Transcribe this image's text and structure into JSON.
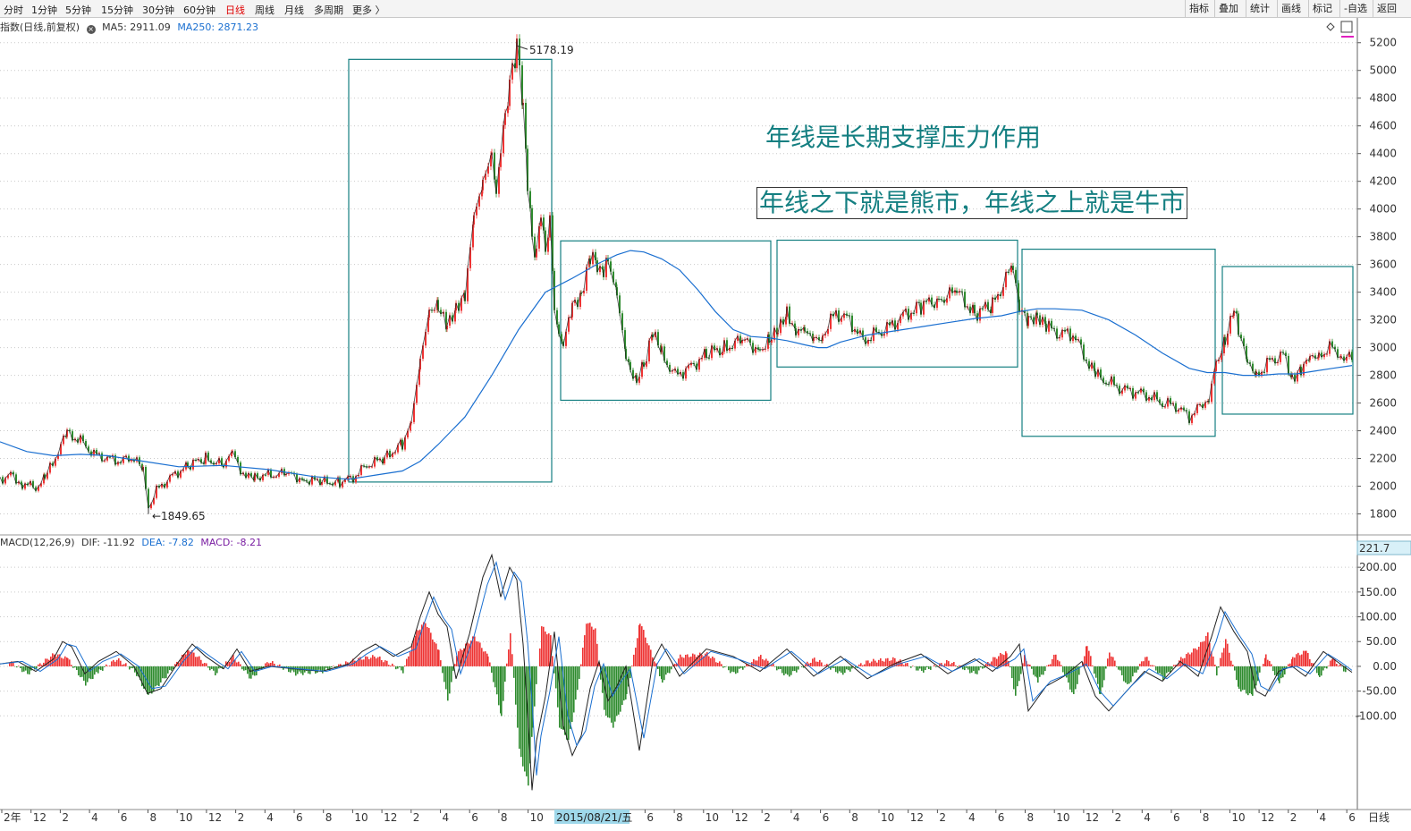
{
  "toolbar": {
    "tabs": [
      "分时",
      "1分钟",
      "5分钟",
      "15分钟",
      "30分钟",
      "60分钟",
      "日线",
      "周线",
      "月线",
      "多周期",
      "更多 〉"
    ],
    "active_tab": "日线",
    "right_buttons": [
      "指标",
      "叠加",
      "统计",
      "画线",
      "标记",
      "-自选",
      "返回"
    ]
  },
  "header": {
    "title": "指数(日线,前复权)",
    "ma5": "MA5: 2911.09",
    "ma250": "MA250: 2871.23",
    "colors": {
      "ma5": "#333333",
      "ma250": "#1a6fd0"
    }
  },
  "annotations": {
    "line1": "年线是长期支撑压力作用",
    "line2": "年线之下就是熊市，年线之上就是牛市",
    "high_label": "5178.19",
    "low_label": "1849.65",
    "color": "#147f81"
  },
  "macd": {
    "title": "MACD(12,26,9)",
    "dif": "DIF: -11.92",
    "dea": "DEA: -7.82",
    "macd": "MACD: -8.21",
    "badge": "221.7",
    "colors": {
      "dif": "#333333",
      "dea": "#1a6fd0",
      "macd": "#7a1fa2",
      "up": "#ee3333",
      "down": "#2e8b2e"
    }
  },
  "xaxis": {
    "labels": [
      "2年",
      "12",
      "2",
      "4",
      "6",
      "8",
      "10",
      "12",
      "2",
      "4",
      "6",
      "8",
      "10",
      "12",
      "2",
      "4",
      "6",
      "8",
      "10",
      "12",
      "2",
      "4",
      "6",
      "8",
      "10",
      "12",
      "2",
      "4",
      "6",
      "8",
      "10",
      "12",
      "2",
      "4",
      "6",
      "8",
      "10",
      "12",
      "2",
      "4",
      "6",
      "8",
      "10",
      "12",
      "2",
      "4",
      "6",
      "8",
      "10"
    ],
    "cursor_date": "2015/08/21/五",
    "period_label": "日线"
  },
  "chart_data": [
    {
      "type": "line",
      "title": "指数(日线,前复权)",
      "ylim": [
        1700,
        5250
      ],
      "yticks": [
        1800,
        2000,
        2200,
        2400,
        2600,
        2800,
        3000,
        3200,
        3400,
        3600,
        3800,
        4000,
        4200,
        4400,
        4600,
        4800,
        5000,
        5200
      ],
      "series": [
        {
          "name": "K线",
          "x": [
            0,
            12,
            25,
            40,
            50,
            65,
            75,
            90,
            105,
            120,
            135,
            150,
            160,
            166,
            175,
            190,
            210,
            230,
            250,
            260,
            275,
            285,
            300,
            320,
            340,
            360,
            380,
            395,
            410,
            430,
            450,
            460,
            470,
            480,
            490,
            500,
            510,
            520,
            530,
            540,
            550,
            555,
            560,
            565,
            570,
            578,
            585,
            590,
            595,
            600,
            605,
            610,
            615,
            620,
            625,
            630,
            640,
            650,
            660,
            668,
            675,
            680,
            690,
            700,
            705,
            712,
            720,
            730,
            740,
            755,
            770,
            790,
            810,
            830,
            850,
            860,
            870,
            880,
            890,
            900,
            910,
            920,
            935,
            950,
            965,
            980,
            995,
            1010,
            1030,
            1050,
            1070,
            1090,
            1110,
            1125,
            1133,
            1140,
            1150,
            1160,
            1170,
            1185,
            1200,
            1212,
            1225,
            1240,
            1255,
            1270,
            1285,
            1300,
            1315,
            1330,
            1342,
            1352,
            1360,
            1370,
            1380,
            1385,
            1395,
            1405,
            1420,
            1435,
            1445,
            1455,
            1465,
            1475,
            1490,
            1500,
            1512
          ],
          "values": [
            2050,
            2080,
            2020,
            1990,
            2050,
            2250,
            2380,
            2330,
            2230,
            2200,
            2180,
            2210,
            2100,
            1850,
            1970,
            2060,
            2150,
            2200,
            2150,
            2230,
            2060,
            2070,
            2080,
            2090,
            2050,
            2030,
            2030,
            2060,
            2150,
            2200,
            2310,
            2440,
            2900,
            3300,
            3280,
            3140,
            3300,
            3400,
            3900,
            4200,
            4450,
            4100,
            4400,
            4700,
            4900,
            5178,
            4700,
            4200,
            3800,
            3650,
            4000,
            3700,
            3900,
            3300,
            3100,
            3000,
            3300,
            3400,
            3650,
            3600,
            3550,
            3650,
            3400,
            2900,
            2850,
            2750,
            2880,
            3100,
            2950,
            2800,
            2850,
            2950,
            3000,
            3050,
            2990,
            3060,
            3100,
            3250,
            3150,
            3100,
            3050,
            3100,
            3250,
            3200,
            3050,
            3100,
            3150,
            3230,
            3300,
            3350,
            3400,
            3250,
            3300,
            3500,
            3580,
            3250,
            3200,
            3250,
            3150,
            3100,
            3100,
            2950,
            2800,
            2750,
            2700,
            2680,
            2650,
            2600,
            2580,
            2500,
            2570,
            2650,
            2900,
            3050,
            3250,
            3150,
            2870,
            2800,
            2900,
            2950,
            2790,
            2850,
            2900,
            2950,
            3000,
            2950,
            2911
          ]
        },
        {
          "name": "MA250",
          "x": [
            0,
            30,
            60,
            90,
            120,
            160,
            200,
            250,
            300,
            350,
            390,
            420,
            450,
            470,
            490,
            520,
            550,
            580,
            610,
            640,
            670,
            690,
            705,
            720,
            740,
            760,
            780,
            800,
            820,
            840,
            860,
            880,
            900,
            915,
            925,
            940,
            970,
            1000,
            1030,
            1060,
            1090,
            1120,
            1140,
            1160,
            1180,
            1210,
            1240,
            1270,
            1300,
            1330,
            1350,
            1370,
            1390,
            1410,
            1430,
            1450,
            1470,
            1490,
            1512
          ],
          "values": [
            2320,
            2250,
            2220,
            2230,
            2220,
            2180,
            2140,
            2150,
            2120,
            2070,
            2050,
            2080,
            2110,
            2180,
            2300,
            2500,
            2800,
            3130,
            3400,
            3500,
            3610,
            3670,
            3700,
            3690,
            3640,
            3560,
            3420,
            3260,
            3130,
            3080,
            3070,
            3050,
            3020,
            3000,
            3000,
            3040,
            3090,
            3120,
            3150,
            3180,
            3210,
            3230,
            3260,
            3280,
            3280,
            3270,
            3200,
            3090,
            2960,
            2850,
            2820,
            2820,
            2800,
            2800,
            2810,
            2810,
            2830,
            2850,
            2871
          ]
        }
      ],
      "highlight_boxes": [
        {
          "from_x": 390,
          "to_x": 617,
          "low": 2030,
          "high": 5080
        },
        {
          "from_x": 627,
          "to_x": 862,
          "low": 2620,
          "high": 3770
        },
        {
          "from_x": 869,
          "to_x": 1138,
          "low": 2860,
          "high": 3775
        },
        {
          "from_x": 1143,
          "to_x": 1359,
          "low": 2360,
          "high": 3710
        },
        {
          "from_x": 1367,
          "to_x": 1513,
          "low": 2520,
          "high": 3585
        }
      ]
    },
    {
      "type": "line",
      "title": "MACD(12,26,9)",
      "ylim": [
        -280,
        240
      ],
      "yticks": [
        -100,
        -50,
        0,
        50,
        100,
        150,
        200
      ],
      "series": [
        {
          "name": "DIF",
          "x": [
            0,
            20,
            40,
            60,
            70,
            80,
            95,
            110,
            130,
            150,
            165,
            180,
            200,
            215,
            230,
            250,
            265,
            280,
            300,
            330,
            360,
            390,
            405,
            420,
            440,
            460,
            470,
            480,
            490,
            500,
            510,
            525,
            540,
            550,
            560,
            570,
            578,
            585,
            590,
            595,
            600,
            610,
            620,
            630,
            640,
            650,
            660,
            670,
            680,
            690,
            700,
            715,
            730,
            740,
            760,
            790,
            820,
            850,
            880,
            910,
            940,
            970,
            1000,
            1030,
            1060,
            1090,
            1110,
            1130,
            1140,
            1150,
            1170,
            1190,
            1210,
            1225,
            1240,
            1260,
            1280,
            1300,
            1320,
            1340,
            1355,
            1365,
            1380,
            1395,
            1405,
            1415,
            1430,
            1445,
            1460,
            1480,
            1495,
            1512
          ],
          "values": [
            5,
            10,
            -10,
            15,
            50,
            40,
            -15,
            10,
            30,
            0,
            -55,
            -45,
            10,
            45,
            20,
            -5,
            35,
            -10,
            0,
            -5,
            -10,
            5,
            30,
            45,
            20,
            40,
            100,
            150,
            105,
            80,
            -25,
            65,
            180,
            225,
            140,
            200,
            175,
            45,
            -90,
            -250,
            -150,
            -60,
            70,
            -120,
            -180,
            -140,
            -45,
            10,
            -70,
            -40,
            0,
            -170,
            10,
            45,
            -20,
            35,
            20,
            -10,
            35,
            -20,
            20,
            -25,
            5,
            25,
            -15,
            15,
            -10,
            20,
            45,
            -90,
            -40,
            -20,
            10,
            -60,
            -90,
            -50,
            -10,
            -30,
            10,
            -20,
            60,
            120,
            70,
            30,
            -50,
            -60,
            -10,
            0,
            -20,
            30,
            10,
            -12
          ]
        },
        {
          "name": "DEA",
          "x": [
            0,
            25,
            45,
            65,
            75,
            85,
            100,
            115,
            135,
            155,
            170,
            185,
            205,
            220,
            235,
            255,
            270,
            285,
            305,
            335,
            365,
            395,
            410,
            425,
            445,
            465,
            475,
            485,
            495,
            505,
            515,
            530,
            545,
            555,
            565,
            575,
            583,
            590,
            595,
            600,
            605,
            615,
            625,
            635,
            645,
            655,
            665,
            675,
            685,
            695,
            705,
            720,
            735,
            745,
            765,
            795,
            825,
            855,
            885,
            915,
            945,
            975,
            1005,
            1035,
            1065,
            1095,
            1115,
            1135,
            1145,
            1155,
            1175,
            1195,
            1215,
            1230,
            1245,
            1265,
            1285,
            1305,
            1325,
            1345,
            1360,
            1370,
            1385,
            1400,
            1410,
            1420,
            1435,
            1450,
            1465,
            1485,
            1500,
            1512
          ],
          "values": [
            5,
            10,
            -10,
            15,
            45,
            40,
            -10,
            10,
            25,
            0,
            -45,
            -40,
            10,
            40,
            20,
            -5,
            30,
            -10,
            0,
            -5,
            -10,
            5,
            25,
            40,
            20,
            35,
            90,
            140,
            100,
            75,
            -15,
            60,
            165,
            210,
            135,
            190,
            170,
            50,
            -70,
            -220,
            -140,
            -50,
            60,
            -100,
            -160,
            -130,
            -40,
            5,
            -60,
            -30,
            -5,
            -145,
            5,
            35,
            -15,
            30,
            15,
            -5,
            30,
            -15,
            15,
            -20,
            5,
            20,
            -10,
            15,
            -5,
            15,
            35,
            -70,
            -30,
            -15,
            5,
            -50,
            -80,
            -40,
            -5,
            -25,
            5,
            -15,
            50,
            110,
            65,
            25,
            -40,
            -50,
            -5,
            0,
            -15,
            25,
            8,
            -8
          ]
        }
      ],
      "histogram": {
        "name": "MACD",
        "x": [
          10,
          30,
          60,
          75,
          95,
          110,
          130,
          150,
          165,
          185,
          210,
          220,
          240,
          260,
          280,
          300,
          330,
          360,
          400,
          420,
          450,
          465,
          475,
          490,
          500,
          510,
          530,
          545,
          560,
          570,
          580,
          590,
          595,
          605,
          615,
          625,
          635,
          645,
          655,
          665,
          675,
          685,
          700,
          715,
          725,
          740,
          760,
          790,
          820,
          850,
          880,
          910,
          940,
          970,
          1000,
          1030,
          1060,
          1090,
          1110,
          1125,
          1135,
          1145,
          1160,
          1180,
          1200,
          1215,
          1230,
          1240,
          1260,
          1280,
          1300,
          1320,
          1340,
          1350,
          1360,
          1370,
          1385,
          1400,
          1415,
          1430,
          1445,
          1460,
          1475,
          1490,
          1505
        ],
        "values": [
          10,
          -15,
          25,
          15,
          -35,
          -10,
          15,
          -10,
          -60,
          -20,
          35,
          20,
          -15,
          20,
          -25,
          10,
          -15,
          -10,
          15,
          20,
          -10,
          70,
          90,
          30,
          -70,
          25,
          60,
          20,
          -100,
          70,
          -170,
          -240,
          -120,
          80,
          60,
          -120,
          -150,
          -50,
          90,
          75,
          -90,
          -120,
          -60,
          90,
          40,
          -30,
          20,
          25,
          -15,
          20,
          -20,
          15,
          -15,
          10,
          15,
          -10,
          10,
          -15,
          15,
          30,
          -60,
          20,
          -30,
          25,
          -60,
          45,
          -60,
          30,
          -40,
          20,
          -25,
          15,
          40,
          65,
          -15,
          55,
          -45,
          -60,
          25,
          -35,
          20,
          30,
          -20,
          15,
          -12
        ]
      }
    }
  ]
}
